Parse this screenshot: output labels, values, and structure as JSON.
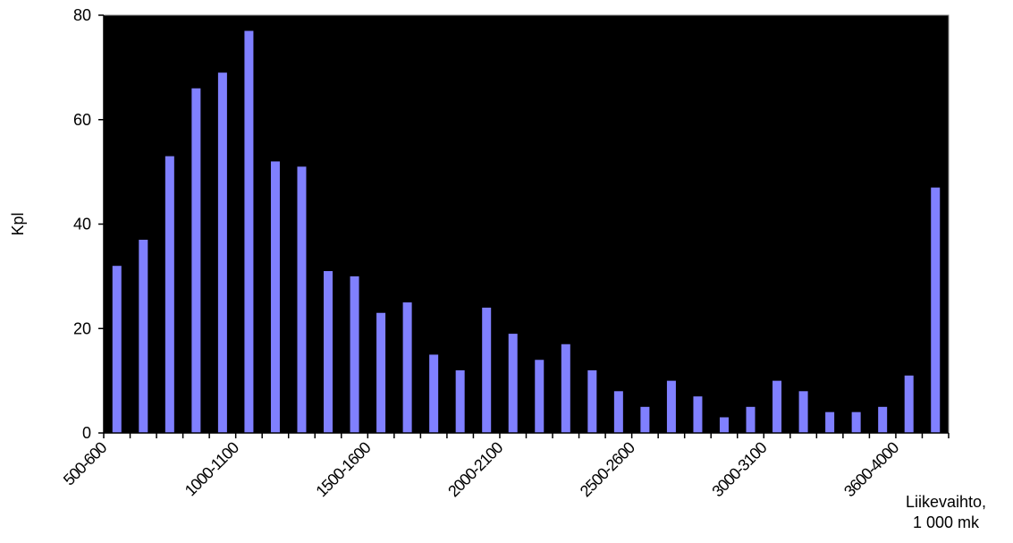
{
  "chart_data": {
    "type": "bar",
    "ylabel": "Kpl",
    "xlabel_lines": [
      "Liikevaihto,",
      "1 000 mk"
    ],
    "ylim": [
      0,
      80
    ],
    "yticks": [
      "0",
      "20",
      "40",
      "60",
      "80"
    ],
    "shown_category_labels": [
      "500-600",
      "1000-1100",
      "1500-1600",
      "2000-2100",
      "2500-2600",
      "3000-3100",
      "3600-4000"
    ],
    "values": [
      32,
      37,
      53,
      66,
      69,
      77,
      52,
      51,
      31,
      30,
      23,
      25,
      15,
      12,
      24,
      19,
      14,
      17,
      12,
      8,
      5,
      10,
      7,
      3,
      5,
      10,
      8,
      4,
      4,
      5,
      11,
      47
    ],
    "colors": {
      "plot_bg": "#000000",
      "bar": "#8080ff",
      "axis": "#000000"
    },
    "grid": false,
    "legend": "none"
  }
}
